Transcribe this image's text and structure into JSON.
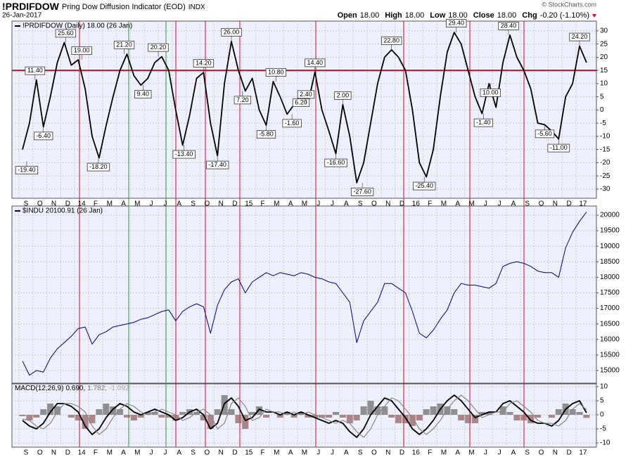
{
  "header": {
    "symbol": "!PRDIFDOW",
    "name": "Pring Dow Diffusion Indicator (EOD)",
    "exchange": "INDX",
    "date": "26-Jan-2017",
    "source": "© StockCharts.com",
    "quote": [
      {
        "label": "Open",
        "value": "18.00"
      },
      {
        "label": "High",
        "value": "18.00"
      },
      {
        "label": "Low",
        "value": "18.00"
      },
      {
        "label": "Close",
        "value": "18.00"
      },
      {
        "label": "Chg",
        "value": "-0.20 (-1.10%)"
      }
    ]
  },
  "chart_data": [
    {
      "type": "line",
      "legend": "!PRDIFDOW (Daily) 18.00 (26 Jan)",
      "categories": [
        "S",
        null,
        "O",
        null,
        "N",
        null,
        "D",
        null,
        "14",
        null,
        "F",
        null,
        "M",
        null,
        "A",
        null,
        "M",
        null,
        "J",
        null,
        "J",
        null,
        "A",
        null,
        "S",
        null,
        "O",
        null,
        "N",
        null,
        "D",
        null,
        "15",
        null,
        "F",
        null,
        "M",
        null,
        "A",
        null,
        "M",
        null,
        "J",
        null,
        "J",
        null,
        "A",
        null,
        "S",
        null,
        "O",
        null,
        "N",
        null,
        "D",
        null,
        "16",
        null,
        "F",
        null,
        "M",
        null,
        "A",
        null,
        "M",
        null,
        "J",
        null,
        "J",
        null,
        "A",
        null,
        "S",
        null,
        "O",
        null,
        "N",
        null,
        "D",
        null,
        "17",
        null
      ],
      "series": [
        {
          "name": "!PRDIFDOW",
          "color": "#000000",
          "values": [
            -15,
            -5,
            11.4,
            -6.4,
            5,
            18,
            25.6,
            17,
            19,
            8,
            -10,
            -18.2,
            -6,
            5,
            15,
            21.2,
            13,
            9.4,
            12,
            18,
            20.2,
            15,
            0,
            -13.4,
            -2,
            12,
            14.2,
            -5,
            -17.4,
            10,
            26,
            15,
            7.2,
            12,
            0,
            -5.8,
            10.8,
            5,
            -1.6,
            2,
            6.2,
            2.4,
            14.4,
            0,
            -8,
            -16.6,
            2,
            -10,
            -27.6,
            -20,
            -5,
            10,
            20,
            22.8,
            20,
            15,
            0,
            -20,
            -25.4,
            -15,
            5,
            22,
            29.4,
            25,
            15,
            5,
            -1.4,
            10,
            1,
            18,
            28.4,
            20,
            15,
            8,
            -5,
            -5.6,
            -8,
            -11,
            5,
            10,
            24.2,
            18
          ]
        }
      ],
      "annotations": [
        {
          "x": 0.6,
          "value": -19.4,
          "label": "-19.40"
        },
        {
          "x": 1.8,
          "value": 11.4,
          "label": "11.40"
        },
        {
          "x": 3,
          "value": -6.4,
          "label": "-6.40"
        },
        {
          "x": 6.2,
          "value": 25.6,
          "label": "25.60"
        },
        {
          "x": 8.5,
          "value": 19,
          "label": "19.00"
        },
        {
          "x": 10.9,
          "value": -18.2,
          "label": "-18.20"
        },
        {
          "x": 14.6,
          "value": 21.2,
          "label": "21.20"
        },
        {
          "x": 17.3,
          "value": 9.4,
          "label": "9.40"
        },
        {
          "x": 19.5,
          "value": 20.2,
          "label": "20.20"
        },
        {
          "x": 23.2,
          "value": -13.4,
          "label": "-13.40"
        },
        {
          "x": 26,
          "value": 14.2,
          "label": "14.20"
        },
        {
          "x": 28,
          "value": -17.4,
          "label": "-17.40"
        },
        {
          "x": 30,
          "value": 26,
          "label": "26.00"
        },
        {
          "x": 31.6,
          "value": 7.2,
          "label": "7.20"
        },
        {
          "x": 35,
          "value": -5.8,
          "label": "-5.80"
        },
        {
          "x": 36.4,
          "value": 10.8,
          "label": "10.80"
        },
        {
          "x": 38.7,
          "value": -1.6,
          "label": "-1.60"
        },
        {
          "x": 40,
          "value": 6.2,
          "label": "6.20"
        },
        {
          "x": 40.7,
          "value": 2.4,
          "label": "2.40"
        },
        {
          "x": 42,
          "value": 14.4,
          "label": "14.40"
        },
        {
          "x": 45,
          "value": -16.6,
          "label": "-16.60"
        },
        {
          "x": 46,
          "value": 2,
          "label": "2.00"
        },
        {
          "x": 48.8,
          "value": -27.6,
          "label": "-27.60"
        },
        {
          "x": 53,
          "value": 22.8,
          "label": "22.80"
        },
        {
          "x": 57.7,
          "value": -25.4,
          "label": "-25.40"
        },
        {
          "x": 62.3,
          "value": 29.4,
          "label": "29.40"
        },
        {
          "x": 66.2,
          "value": -1.4,
          "label": "-1.40"
        },
        {
          "x": 67.2,
          "value": 10,
          "label": "10.00"
        },
        {
          "x": 69.8,
          "value": 28.4,
          "label": "28.40"
        },
        {
          "x": 75,
          "value": -5.6,
          "label": "-5.60"
        },
        {
          "x": 77,
          "value": -11,
          "label": "-11.00"
        },
        {
          "x": 80,
          "value": 24.2,
          "label": "24.20"
        }
      ],
      "hline": {
        "value": 15,
        "color": "#c8102e"
      },
      "ylim": [
        -33.5,
        33.7
      ],
      "yticks": [
        -30,
        -25,
        -20,
        -15,
        -10,
        -5,
        0,
        5,
        10,
        15,
        20,
        25,
        30
      ],
      "grid": true
    },
    {
      "type": "line",
      "legend": "$INDU 20100.91 (26 Jan)",
      "series": [
        {
          "name": "$INDU",
          "color": "#000080",
          "values": [
            15300,
            14850,
            15000,
            14950,
            15400,
            15700,
            15900,
            16100,
            16350,
            16400,
            15850,
            16150,
            16250,
            16400,
            16450,
            16500,
            16550,
            16650,
            16700,
            16800,
            16900,
            16950,
            16600,
            16900,
            17050,
            17150,
            17050,
            16200,
            17100,
            17600,
            17850,
            17950,
            17500,
            17850,
            18000,
            18150,
            18050,
            18150,
            18100,
            18050,
            18150,
            18100,
            18000,
            17950,
            17850,
            17800,
            17500,
            17200,
            15900,
            16600,
            16900,
            17200,
            17800,
            17800,
            17650,
            17500,
            16900,
            16200,
            16050,
            16300,
            16650,
            16950,
            17500,
            17800,
            17750,
            17750,
            17700,
            17650,
            17800,
            18350,
            18450,
            18500,
            18450,
            18350,
            18200,
            18150,
            18150,
            18000,
            18950,
            19450,
            19800,
            20100.91
          ]
        }
      ],
      "ylim": [
        14593,
        20294
      ],
      "yticks": [
        15000,
        15500,
        16000,
        16500,
        17000,
        17500,
        18000,
        18500,
        19000,
        19500,
        20000
      ],
      "grid": true
    },
    {
      "type": "macd",
      "legend": [
        "MACD(12,26,9)",
        "0.690,",
        "1.782,",
        "-1.092"
      ],
      "categories": [
        "S",
        null,
        "O",
        null,
        "N",
        null,
        "D",
        null,
        "14",
        null,
        "F",
        null,
        "M",
        null,
        "A",
        null,
        "M",
        null,
        "J",
        null,
        "J",
        null,
        "A",
        null,
        "S",
        null,
        "O",
        null,
        "N",
        null,
        "D",
        null,
        "15",
        null,
        "F",
        null,
        "M",
        null,
        "A",
        null,
        "M",
        null,
        "J",
        null,
        "J",
        null,
        "A",
        null,
        "S",
        null,
        "O",
        null,
        "N",
        null,
        "D",
        null,
        "16",
        null,
        "F",
        null,
        "M",
        null,
        "A",
        null,
        "M",
        null,
        "J",
        null,
        "J",
        null,
        "A",
        null,
        "S",
        null,
        "O",
        null,
        "N",
        null,
        "D",
        null,
        "17",
        null
      ],
      "series": [
        {
          "name": "MACD",
          "color": "#000000",
          "values": [
            -2,
            -4,
            -5,
            -3,
            1,
            4,
            4,
            3,
            1,
            -4,
            -7,
            -5,
            -1,
            2,
            4,
            3,
            1,
            0,
            1,
            2,
            1,
            0,
            -2,
            -1,
            1,
            2,
            0,
            -5,
            -3,
            4,
            6,
            3,
            -2,
            -1,
            2,
            1,
            1,
            0,
            1,
            0,
            1,
            0,
            -1,
            -2,
            -3,
            -2,
            -3,
            -6,
            -8,
            -5,
            0,
            3,
            6,
            5,
            2,
            -1,
            -5,
            -7,
            -5,
            -2,
            2,
            5,
            7,
            5,
            2,
            -1,
            0,
            1,
            1,
            4,
            5,
            3,
            1,
            -2,
            -3,
            -3,
            -4,
            -2,
            2,
            4,
            5,
            0.69
          ]
        },
        {
          "name": "Signal",
          "color": "#888888",
          "values": [
            -1.5,
            -2,
            -4,
            -5,
            -3,
            1,
            4,
            4,
            3,
            1,
            -4,
            -7,
            -5,
            -1,
            2,
            4,
            3,
            1,
            0,
            1,
            2,
            1,
            0,
            -2,
            -1,
            1,
            2,
            0,
            -5,
            -3,
            4,
            6,
            3,
            -2,
            -1,
            2,
            1,
            1,
            0,
            1,
            0,
            1,
            0,
            -1,
            -2,
            -3,
            -2,
            -3,
            -6,
            -8,
            -5,
            0,
            3,
            6,
            5,
            2,
            -1,
            -5,
            -7,
            -5,
            -2,
            2,
            5,
            7,
            5,
            2,
            -1,
            0,
            1,
            1,
            4,
            5,
            3,
            1,
            -2,
            -3,
            -3,
            -4,
            -2,
            2,
            4,
            1.782
          ]
        },
        {
          "name": "Histogram",
          "color": "#777777",
          "negative_color": "#9a6a6a",
          "values": [
            -0.5,
            -2,
            -1,
            2,
            4,
            3,
            0,
            -1,
            -2,
            -5,
            -3,
            2,
            4,
            3,
            2,
            -1,
            -2,
            -1,
            1,
            1,
            -1,
            -1,
            -2,
            1,
            2,
            1,
            -2,
            -5,
            2,
            7,
            2,
            -3,
            -5,
            1,
            3,
            -1,
            0,
            -1,
            1,
            -1,
            1,
            -1,
            -1,
            -1,
            -1,
            1,
            -1,
            -3,
            -2,
            3,
            5,
            3,
            3,
            -1,
            -3,
            -3,
            -4,
            -2,
            2,
            3,
            4,
            3,
            2,
            -2,
            -3,
            -3,
            1,
            1,
            0,
            3,
            1,
            -2,
            -2,
            -3,
            -1,
            0,
            -1,
            2,
            4,
            2,
            1,
            -1.092
          ]
        }
      ],
      "ylim": [
        -11.5,
        11
      ],
      "yticks": [
        -10,
        -5,
        0,
        5,
        10
      ],
      "grid": true
    }
  ]
}
